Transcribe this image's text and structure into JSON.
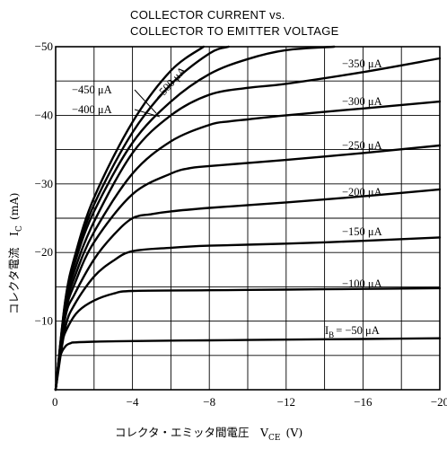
{
  "chart_data": {
    "type": "line",
    "title_lines": [
      "COLLECTOR CURRENT vs.",
      "COLLECTOR TO EMITTER VOLTAGE"
    ],
    "xlabel": "コレクタ・エミッタ間電圧　V",
    "xlabel_sub": "CE",
    "xlabel_unit": "(V)",
    "ylabel": "コレクタ電流　I",
    "ylabel_sub": "C",
    "ylabel_unit": "(mA)",
    "xlim": [
      0,
      -20
    ],
    "ylim": [
      0,
      -50
    ],
    "x_ticks": [
      {
        "value": 0,
        "label": "0"
      },
      {
        "value": -4,
        "label": "−4"
      },
      {
        "value": -8,
        "label": "−8"
      },
      {
        "value": -12,
        "label": "−12"
      },
      {
        "value": -16,
        "label": "−16"
      },
      {
        "value": -20,
        "label": "−20"
      }
    ],
    "y_ticks": [
      {
        "value": -10,
        "label": "−10"
      },
      {
        "value": -20,
        "label": "−20"
      },
      {
        "value": -30,
        "label": "−30"
      },
      {
        "value": -40,
        "label": "−40"
      },
      {
        "value": -50,
        "label": "−50"
      }
    ],
    "grid": true,
    "grid_step_x": -2,
    "grid_step_y": -5,
    "series": [
      {
        "label": "I",
        "label_sub": "B",
        "label_rest": "= −50 μA",
        "x": [
          0,
          -0.2,
          -0.5,
          -0.8,
          -1,
          -2,
          -4,
          -8,
          -12,
          -16,
          -20
        ],
        "y": [
          0,
          -4.5,
          -6.3,
          -6.8,
          -6.9,
          -7.0,
          -7.1,
          -7.2,
          -7.3,
          -7.4,
          -7.5
        ]
      },
      {
        "label": "−100 μA",
        "x": [
          0,
          -0.3,
          -0.7,
          -1.2,
          -2,
          -3,
          -4,
          -8,
          -12,
          -16,
          -20
        ],
        "y": [
          0,
          -6.5,
          -9.5,
          -11.5,
          -13,
          -14,
          -14.4,
          -14.5,
          -14.6,
          -14.7,
          -14.8
        ]
      },
      {
        "label": "−150 μA",
        "x": [
          0,
          -0.5,
          -1,
          -2,
          -3,
          -4,
          -6,
          -8,
          -12,
          -16,
          -20
        ],
        "y": [
          0,
          -9,
          -12.5,
          -16.5,
          -18.8,
          -20.2,
          -20.7,
          -21.0,
          -21.3,
          -21.7,
          -22.2
        ]
      },
      {
        "label": "−200 μA",
        "x": [
          0,
          -0.5,
          -1,
          -2,
          -3,
          -4,
          -5,
          -6,
          -8,
          -12,
          -16,
          -20
        ],
        "y": [
          0,
          -10.5,
          -14,
          -19,
          -22.5,
          -25,
          -25.6,
          -26,
          -26.5,
          -27.3,
          -28.2,
          -29.2
        ]
      },
      {
        "label": "−250 μA",
        "x": [
          0,
          -0.5,
          -1,
          -2,
          -4,
          -6,
          -7,
          -8,
          -12,
          -16,
          -20
        ],
        "y": [
          0,
          -11,
          -15.5,
          -21.5,
          -28.5,
          -31.5,
          -32.3,
          -32.6,
          -33.5,
          -34.5,
          -35.6
        ]
      },
      {
        "label": "−300 μA",
        "x": [
          0,
          -0.5,
          -1,
          -2,
          -4,
          -6,
          -8,
          -9,
          -10,
          -12,
          -16,
          -20
        ],
        "y": [
          0,
          -11.5,
          -16.5,
          -23,
          -31.5,
          -36.2,
          -38.6,
          -39.1,
          -39.4,
          -40,
          -41,
          -42
        ]
      },
      {
        "label": "−350 μA",
        "x": [
          0,
          -0.5,
          -1,
          -2,
          -4,
          -6,
          -8,
          -10,
          -12,
          -16,
          -20
        ],
        "y": [
          0,
          -12,
          -17.5,
          -24.5,
          -34.5,
          -40,
          -43,
          -44,
          -44.6,
          -46.3,
          -48.3
        ]
      },
      {
        "label": "−400 μA",
        "x": [
          0,
          -0.5,
          -1,
          -2,
          -4,
          -6,
          -8,
          -10,
          -12,
          -14.5
        ],
        "y": [
          0,
          -12.5,
          -18.5,
          -26,
          -36,
          -42,
          -46,
          -48.2,
          -49.5,
          -50
        ]
      },
      {
        "label": "−450 μA",
        "x": [
          0,
          -0.5,
          -1,
          -2,
          -4,
          -6,
          -8,
          -9
        ],
        "y": [
          0,
          -12.8,
          -19,
          -27,
          -37.5,
          -44.5,
          -49,
          -50
        ]
      },
      {
        "label": "−500 μA",
        "x": [
          0,
          -0.5,
          -1,
          -2,
          -4,
          -6,
          -7.7
        ],
        "y": [
          0,
          -13,
          -19.5,
          -28,
          -39,
          -46.5,
          -50
        ]
      }
    ]
  }
}
